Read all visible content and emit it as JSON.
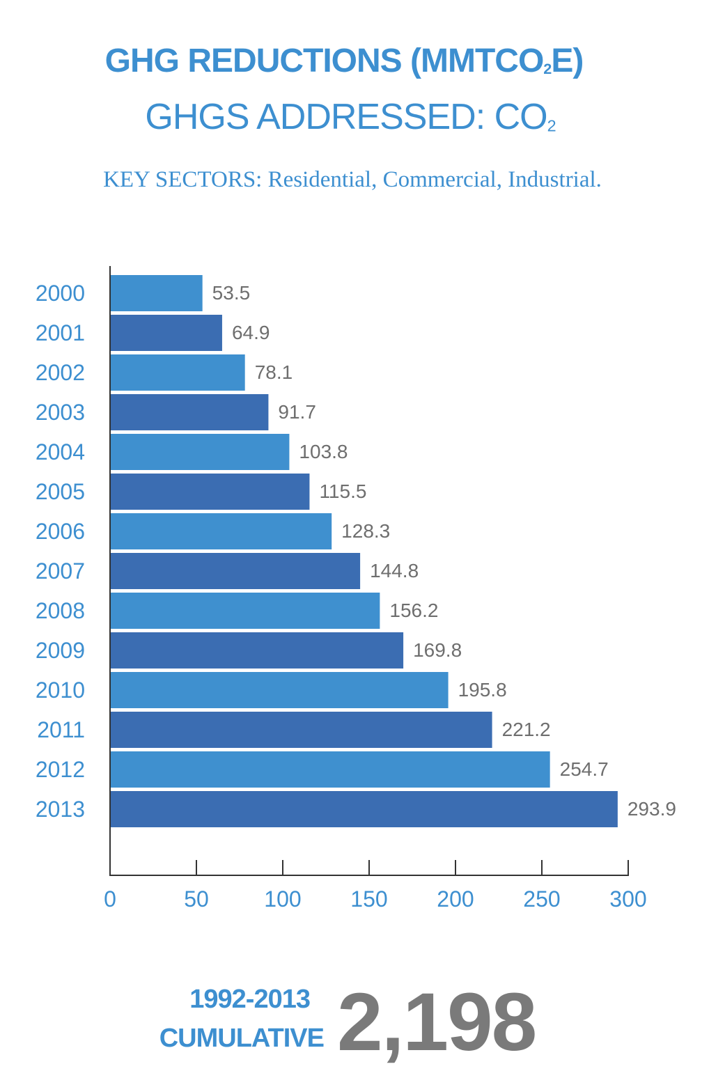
{
  "header": {
    "title_main": "GHG REDUCTIONS (MMTCO",
    "title_sub": "2",
    "title_end": "E)",
    "addressed_main": "GHGS ADDRESSED: CO",
    "addressed_sub": "2",
    "sectors": "KEY SECTORS: Residential, Commercial, Industrial."
  },
  "chart_data": {
    "type": "bar",
    "orientation": "horizontal",
    "categories": [
      "2000",
      "2001",
      "2002",
      "2003",
      "2004",
      "2005",
      "2006",
      "2007",
      "2008",
      "2009",
      "2010",
      "2011",
      "2012",
      "2013"
    ],
    "values": [
      53.5,
      64.9,
      78.1,
      91.7,
      103.8,
      115.5,
      128.3,
      144.8,
      156.2,
      169.8,
      195.8,
      221.2,
      254.7,
      293.9
    ],
    "value_labels": [
      "53.5",
      "64.9",
      "78.1",
      "91.7",
      "103.8",
      "115.5",
      "128.3",
      "144.8",
      "156.2",
      "169.8",
      "195.8",
      "221.2",
      "254.7",
      "293.9"
    ],
    "xlim": [
      0,
      300
    ],
    "xticks": [
      0,
      50,
      100,
      150,
      200,
      250,
      300
    ],
    "xtick_labels": [
      "0",
      "50",
      "100",
      "150",
      "200",
      "250",
      "300"
    ],
    "bar_colors": [
      "#3f90cf",
      "#3b6db2"
    ],
    "label_color": "#3d8fd0",
    "value_label_color": "#6e6e6e"
  },
  "footer": {
    "period": "1992-2013",
    "cumulative_label": "CUMULATIVE",
    "cumulative_value": "2,198"
  }
}
